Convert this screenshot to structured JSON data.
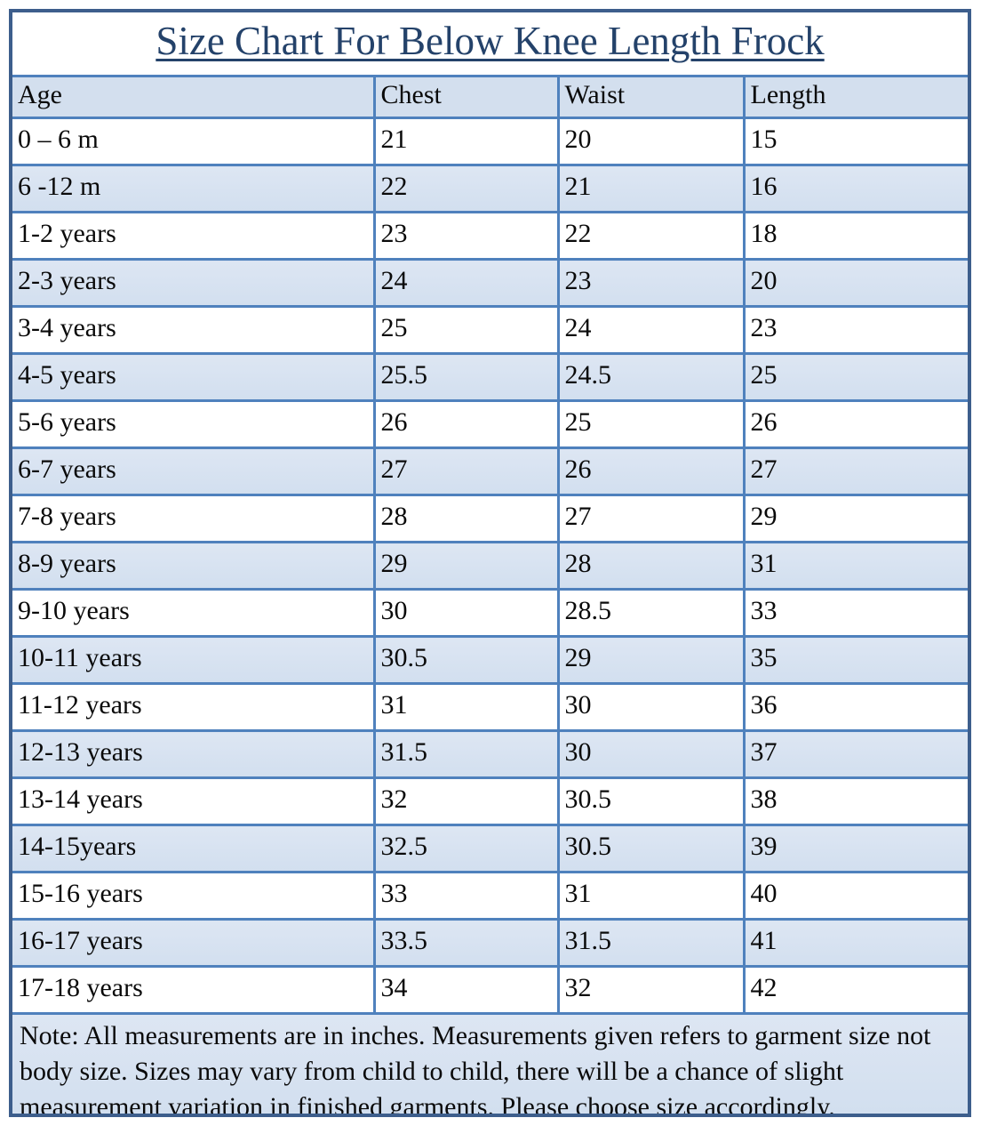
{
  "colors": {
    "border_inner": "#4f81bd",
    "border_outer": "#3d5e8c",
    "row_shade_top": "#dde6f3",
    "row_shade_bottom": "#d2dfef",
    "header_shade": "#d3dfee",
    "title_color": "#24426a",
    "text_color": "#0a0a0a"
  },
  "chart_data": {
    "type": "table",
    "title": "Size Chart For Below Knee Length Frock",
    "columns": [
      "Age",
      "Chest",
      "Waist",
      "Length"
    ],
    "rows": [
      [
        "0 – 6 m",
        "21",
        "20",
        "15"
      ],
      [
        "6 -12 m",
        "22",
        "21",
        "16"
      ],
      [
        "1-2 years",
        "23",
        "22",
        "18"
      ],
      [
        "2-3 years",
        "24",
        "23",
        "20"
      ],
      [
        "3-4 years",
        "25",
        "24",
        "23"
      ],
      [
        "4-5 years",
        "25.5",
        "24.5",
        "25"
      ],
      [
        "5-6 years",
        "26",
        "25",
        "26"
      ],
      [
        "6-7 years",
        "27",
        "26",
        "27"
      ],
      [
        "7-8 years",
        "28",
        "27",
        "29"
      ],
      [
        "8-9 years",
        "29",
        "28",
        "31"
      ],
      [
        "9-10 years",
        "30",
        "28.5",
        "33"
      ],
      [
        "10-11 years",
        "30.5",
        "29",
        "35"
      ],
      [
        "11-12 years",
        "31",
        "30",
        "36"
      ],
      [
        "12-13 years",
        "31.5",
        "30",
        "37"
      ],
      [
        "13-14 years",
        "32",
        "30.5",
        "38"
      ],
      [
        "14-15years",
        "32.5",
        "30.5",
        "39"
      ],
      [
        "15-16 years",
        "33",
        "31",
        "40"
      ],
      [
        "16-17 years",
        "33.5",
        "31.5",
        "41"
      ],
      [
        "17-18 years",
        "34",
        "32",
        "42"
      ]
    ],
    "note": "Note: All measurements are in inches. Measurements given refers to garment size not body size. Sizes may vary from child to child, there will be a chance of slight measurement variation in finished garments. Please choose size accordingly.",
    "units": "inches"
  }
}
